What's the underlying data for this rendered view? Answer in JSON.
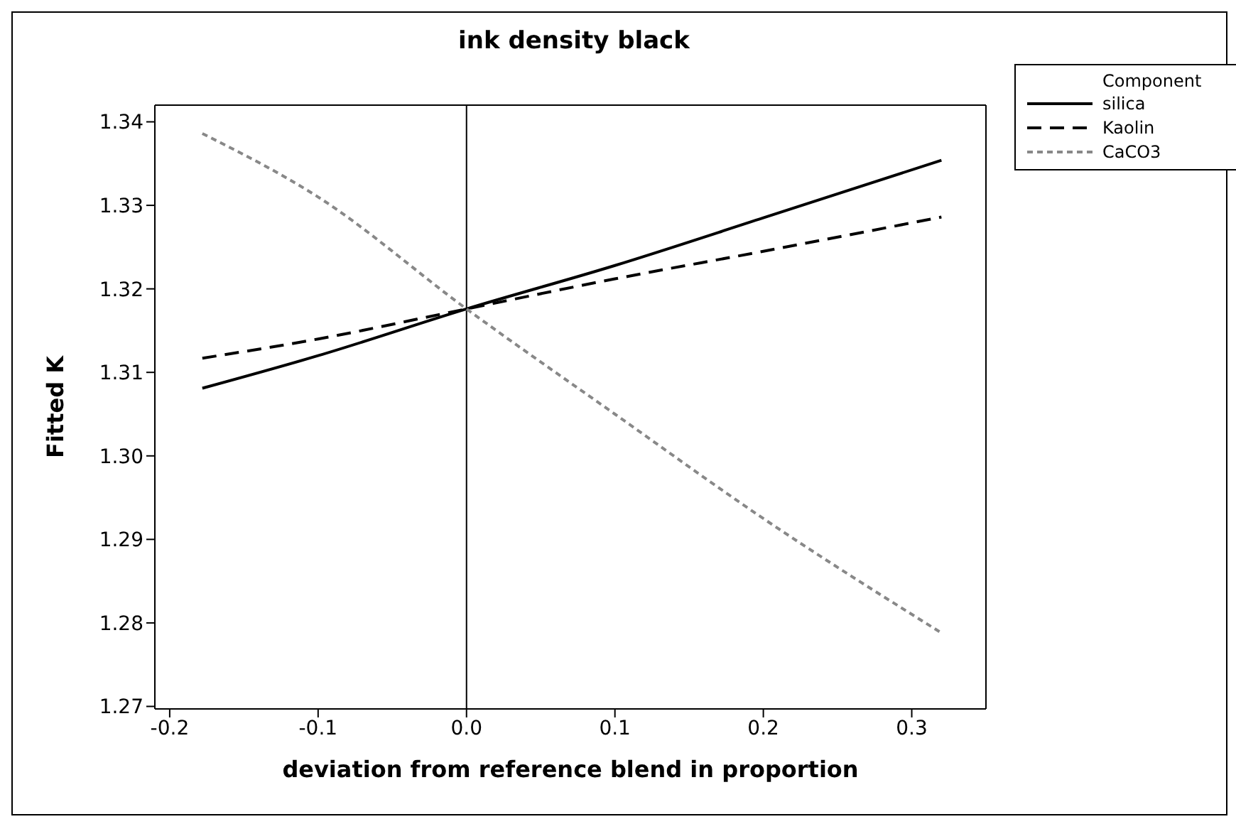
{
  "chart_data": {
    "type": "line",
    "title": "ink density black",
    "xlabel": "deviation from reference blend in proportion",
    "ylabel": "Fitted K",
    "legend_title": "Component",
    "x": [
      -0.178,
      -0.1,
      0,
      0.1,
      0.2,
      0.32
    ],
    "series": [
      {
        "name": "silica",
        "color": "#000000",
        "line_style": "solid",
        "values": [
          1.3081,
          1.312,
          1.3176,
          1.3228,
          1.3285,
          1.3354
        ]
      },
      {
        "name": "Kaolin",
        "color": "#000000",
        "line_style": "dashed",
        "values": [
          1.3117,
          1.314,
          1.3176,
          1.3212,
          1.3245,
          1.3286
        ]
      },
      {
        "name": "CaCO3",
        "color": "#888888",
        "line_style": "dotted",
        "values": [
          1.3386,
          1.331,
          1.3176,
          1.305,
          1.2925,
          1.2788
        ]
      }
    ],
    "xlim": [
      -0.21,
      0.35
    ],
    "xticks": [
      {
        "value": -0.2,
        "label": "-0.2"
      },
      {
        "value": -0.1,
        "label": "-0.1"
      },
      {
        "value": 0,
        "label": "0.0"
      },
      {
        "value": 0.1,
        "label": "0.1"
      },
      {
        "value": 0.2,
        "label": "0.2"
      },
      {
        "value": 0.3,
        "label": "0.3"
      }
    ],
    "ylim": [
      1.2697,
      1.342
    ],
    "yticks": [
      {
        "value": 1.27,
        "label": "1.27"
      },
      {
        "value": 1.28,
        "label": "1.28"
      },
      {
        "value": 1.29,
        "label": "1.29"
      },
      {
        "value": 1.3,
        "label": "1.30"
      },
      {
        "value": 1.31,
        "label": "1.31"
      },
      {
        "value": 1.32,
        "label": "1.32"
      },
      {
        "value": 1.33,
        "label": "1.33"
      },
      {
        "value": 1.34,
        "label": "1.34"
      }
    ],
    "ref_lines": [
      {
        "axis": "x",
        "value": 0,
        "color": "#000000",
        "line_style": "solid"
      }
    ],
    "grid": false,
    "legend": "top right"
  }
}
